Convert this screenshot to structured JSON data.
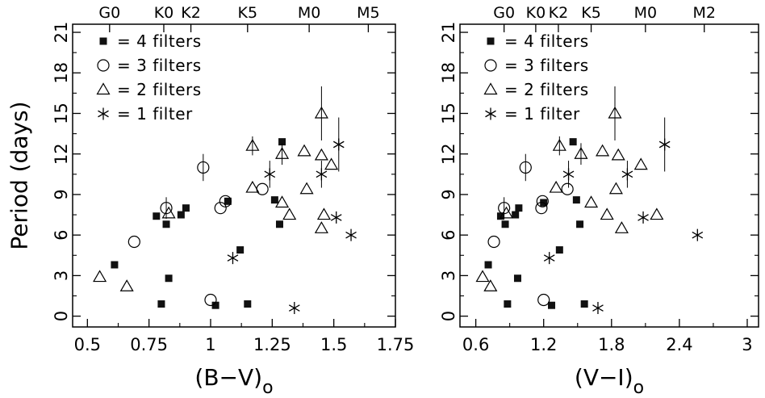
{
  "chart_data": [
    {
      "type": "scatter",
      "xlabel": "(B−V)",
      "xlabel_sub": "o",
      "ylabel": "Period (days)",
      "xlim": [
        0.44,
        1.75
      ],
      "ylim": [
        -0.8,
        21.6
      ],
      "x_ticks": [
        0.5,
        0.75,
        1,
        1.25,
        1.5,
        1.75
      ],
      "x_tick_labels": [
        "0.5",
        "0.75",
        "1",
        "1.25",
        "1.5",
        "1.75"
      ],
      "y_ticks": [
        0,
        3,
        6,
        9,
        12,
        15,
        18,
        21
      ],
      "y_tick_labels": [
        "0",
        "3",
        "6",
        "9",
        "12",
        "15",
        "18",
        "21"
      ],
      "spectral_types": [
        {
          "label": "G0",
          "x": 0.59
        },
        {
          "label": "K0",
          "x": 0.81
        },
        {
          "label": "K2",
          "x": 0.92
        },
        {
          "label": "K5",
          "x": 1.15
        },
        {
          "label": "M0",
          "x": 1.4
        },
        {
          "label": "M5",
          "x": 1.64
        }
      ],
      "legend": [
        {
          "marker": "square",
          "label": "= 4 filters"
        },
        {
          "marker": "circle",
          "label": "= 3 filters"
        },
        {
          "marker": "triangle",
          "label": "= 2 filters"
        },
        {
          "marker": "asterisk",
          "label": "= 1 filter"
        }
      ],
      "series": [
        {
          "marker": "square",
          "points": [
            {
              "x": 0.61,
              "y": 3.8
            },
            {
              "x": 0.78,
              "y": 7.4
            },
            {
              "x": 0.8,
              "y": 0.9
            },
            {
              "x": 0.82,
              "y": 6.8
            },
            {
              "x": 0.83,
              "y": 2.8
            },
            {
              "x": 0.88,
              "y": 7.5
            },
            {
              "x": 0.9,
              "y": 8.0
            },
            {
              "x": 1.02,
              "y": 0.8
            },
            {
              "x": 1.07,
              "y": 8.5
            },
            {
              "x": 1.12,
              "y": 4.9
            },
            {
              "x": 1.15,
              "y": 0.9
            },
            {
              "x": 1.26,
              "y": 8.6
            },
            {
              "x": 1.28,
              "y": 6.8
            },
            {
              "x": 1.29,
              "y": 12.9
            }
          ]
        },
        {
          "marker": "circle",
          "points": [
            {
              "x": 0.69,
              "y": 5.5
            },
            {
              "x": 0.82,
              "y": 8.0,
              "err": 0.8
            },
            {
              "x": 0.97,
              "y": 11.0,
              "err": 1.0
            },
            {
              "x": 1.0,
              "y": 1.2
            },
            {
              "x": 1.04,
              "y": 8.0
            },
            {
              "x": 1.06,
              "y": 8.5
            },
            {
              "x": 1.21,
              "y": 9.4
            }
          ]
        },
        {
          "marker": "triangle",
          "points": [
            {
              "x": 0.55,
              "y": 2.9
            },
            {
              "x": 0.66,
              "y": 2.2
            },
            {
              "x": 0.83,
              "y": 7.6
            },
            {
              "x": 1.17,
              "y": 12.6,
              "err": 0.7
            },
            {
              "x": 1.17,
              "y": 9.5
            },
            {
              "x": 1.29,
              "y": 12.0,
              "err": 0.8
            },
            {
              "x": 1.29,
              "y": 8.4
            },
            {
              "x": 1.32,
              "y": 7.5
            },
            {
              "x": 1.38,
              "y": 12.2
            },
            {
              "x": 1.39,
              "y": 9.4
            },
            {
              "x": 1.45,
              "y": 15.0,
              "err": 2.0
            },
            {
              "x": 1.45,
              "y": 11.9
            },
            {
              "x": 1.45,
              "y": 6.5
            },
            {
              "x": 1.46,
              "y": 7.5
            },
            {
              "x": 1.49,
              "y": 11.2
            }
          ]
        },
        {
          "marker": "asterisk",
          "points": [
            {
              "x": 1.09,
              "y": 4.3
            },
            {
              "x": 1.24,
              "y": 10.5,
              "err": 1.0
            },
            {
              "x": 1.34,
              "y": 0.6
            },
            {
              "x": 1.45,
              "y": 10.5,
              "err": 1.0
            },
            {
              "x": 1.51,
              "y": 7.3
            },
            {
              "x": 1.52,
              "y": 12.7,
              "err": 2.0
            },
            {
              "x": 1.57,
              "y": 6.0
            }
          ]
        }
      ]
    },
    {
      "type": "scatter",
      "xlabel": "(V−I)",
      "xlabel_sub": "o",
      "ylabel": "",
      "xlim": [
        0.46,
        3.1
      ],
      "ylim": [
        -0.8,
        21.6
      ],
      "x_ticks": [
        0.6,
        1.2,
        1.8,
        2.4,
        3.0
      ],
      "x_tick_labels": [
        "0.6",
        "1.2",
        "1.8",
        "2.4",
        "3"
      ],
      "y_ticks": [
        0,
        3,
        6,
        9,
        12,
        15,
        18,
        21
      ],
      "y_tick_labels": [
        "0",
        "3",
        "6",
        "9",
        "12",
        "15",
        "18",
        "21"
      ],
      "spectral_types": [
        {
          "label": "G0",
          "x": 0.85
        },
        {
          "label": "K0",
          "x": 1.13
        },
        {
          "label": "K2",
          "x": 1.33
        },
        {
          "label": "K5",
          "x": 1.62
        },
        {
          "label": "M0",
          "x": 2.1
        },
        {
          "label": "M2",
          "x": 2.62
        }
      ],
      "legend": [
        {
          "marker": "square",
          "label": "= 4 filters"
        },
        {
          "marker": "circle",
          "label": "= 3 filters"
        },
        {
          "marker": "triangle",
          "label": "= 2 filters"
        },
        {
          "marker": "asterisk",
          "label": "= 1 filter"
        }
      ],
      "series": [
        {
          "marker": "square",
          "points": [
            {
              "x": 0.71,
              "y": 3.8
            },
            {
              "x": 0.82,
              "y": 7.4
            },
            {
              "x": 0.86,
              "y": 6.8
            },
            {
              "x": 0.88,
              "y": 0.9
            },
            {
              "x": 0.95,
              "y": 7.5
            },
            {
              "x": 0.97,
              "y": 2.8
            },
            {
              "x": 0.98,
              "y": 8.0
            },
            {
              "x": 1.2,
              "y": 8.4
            },
            {
              "x": 1.27,
              "y": 0.8
            },
            {
              "x": 1.34,
              "y": 4.9
            },
            {
              "x": 1.46,
              "y": 12.9
            },
            {
              "x": 1.49,
              "y": 8.6
            },
            {
              "x": 1.52,
              "y": 6.8
            },
            {
              "x": 1.56,
              "y": 0.9
            }
          ]
        },
        {
          "marker": "circle",
          "points": [
            {
              "x": 0.76,
              "y": 5.5
            },
            {
              "x": 0.85,
              "y": 8.0,
              "err": 0.8
            },
            {
              "x": 1.04,
              "y": 11.0,
              "err": 1.0
            },
            {
              "x": 1.18,
              "y": 8.0
            },
            {
              "x": 1.19,
              "y": 8.5
            },
            {
              "x": 1.2,
              "y": 1.2
            },
            {
              "x": 1.41,
              "y": 9.4
            }
          ]
        },
        {
          "marker": "triangle",
          "points": [
            {
              "x": 0.66,
              "y": 2.9
            },
            {
              "x": 0.73,
              "y": 2.2
            },
            {
              "x": 0.87,
              "y": 7.6
            },
            {
              "x": 1.34,
              "y": 12.6,
              "err": 0.7
            },
            {
              "x": 1.31,
              "y": 9.5
            },
            {
              "x": 1.53,
              "y": 12.0,
              "err": 0.8
            },
            {
              "x": 1.62,
              "y": 8.4
            },
            {
              "x": 1.76,
              "y": 7.5
            },
            {
              "x": 1.72,
              "y": 12.2
            },
            {
              "x": 1.84,
              "y": 9.4
            },
            {
              "x": 1.83,
              "y": 15.0,
              "err": 2.0
            },
            {
              "x": 1.86,
              "y": 11.9
            },
            {
              "x": 1.89,
              "y": 6.5
            },
            {
              "x": 2.2,
              "y": 7.5
            },
            {
              "x": 2.06,
              "y": 11.2
            }
          ]
        },
        {
          "marker": "asterisk",
          "points": [
            {
              "x": 1.25,
              "y": 4.3
            },
            {
              "x": 1.42,
              "y": 10.5,
              "err": 1.0
            },
            {
              "x": 1.68,
              "y": 0.6
            },
            {
              "x": 1.94,
              "y": 10.5,
              "err": 1.0
            },
            {
              "x": 2.08,
              "y": 7.3
            },
            {
              "x": 2.27,
              "y": 12.7,
              "err": 2.0
            },
            {
              "x": 2.56,
              "y": 6.0
            }
          ]
        }
      ]
    }
  ]
}
